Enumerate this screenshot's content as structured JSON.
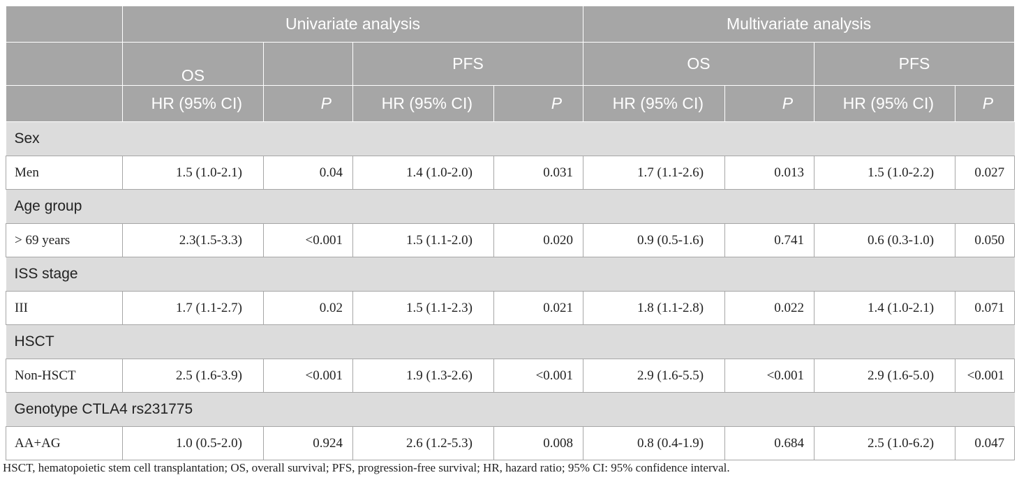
{
  "header": {
    "univariate": "Univariate analysis",
    "multivariate": "Multivariate analysis",
    "os": "OS",
    "pfs": "PFS",
    "hr": "HR (95% CI)",
    "p": "P"
  },
  "groups": [
    {
      "label": "Sex",
      "row": {
        "label": "Men",
        "values": [
          "1.5 (1.0-2.1)",
          "0.04",
          "1.4 (1.0-2.0)",
          "0.031",
          "1.7 (1.1-2.6)",
          "0.013",
          "1.5 (1.0-2.2)",
          "0.027"
        ]
      }
    },
    {
      "label": "Age group",
      "row": {
        "label": "> 69 years",
        "values": [
          "2.3(1.5-3.3)",
          "<0.001",
          "1.5 (1.1-2.0)",
          "0.020",
          "0.9 (0.5-1.6)",
          "0.741",
          "0.6 (0.3-1.0)",
          "0.050"
        ]
      }
    },
    {
      "label": "ISS stage",
      "row": {
        "label": "III",
        "values": [
          "1.7 (1.1-2.7)",
          "0.02",
          "1.5 (1.1-2.3)",
          "0.021",
          "1.8 (1.1-2.8)",
          "0.022",
          "1.4 (1.0-2.1)",
          "0.071"
        ]
      }
    },
    {
      "label": "HSCT",
      "row": {
        "label": "Non-HSCT",
        "values": [
          "2.5 (1.6-3.9)",
          "<0.001",
          "1.9 (1.3-2.6)",
          "<0.001",
          "2.9 (1.6-5.5)",
          "<0.001",
          "2.9 (1.6-5.0)",
          "<0.001"
        ]
      }
    },
    {
      "label": "Genotype CTLA4 rs231775",
      "row": {
        "label": "AA+AG",
        "values": [
          "1.0 (0.5-2.0)",
          "0.924",
          "2.6 (1.2-5.3)",
          "0.008",
          "0.8 (0.4-1.9)",
          "0.684",
          "2.5 (1.0-6.2)",
          "0.047"
        ]
      }
    }
  ],
  "footnote": "HSCT, hematopoietic stem cell transplantation; OS, overall survival; PFS, progression-free survival; HR, hazard ratio; 95% CI: 95% confidence interval.",
  "colors": {
    "header_bg": "#a6a6a6",
    "group_bg": "#dcdcdc"
  }
}
